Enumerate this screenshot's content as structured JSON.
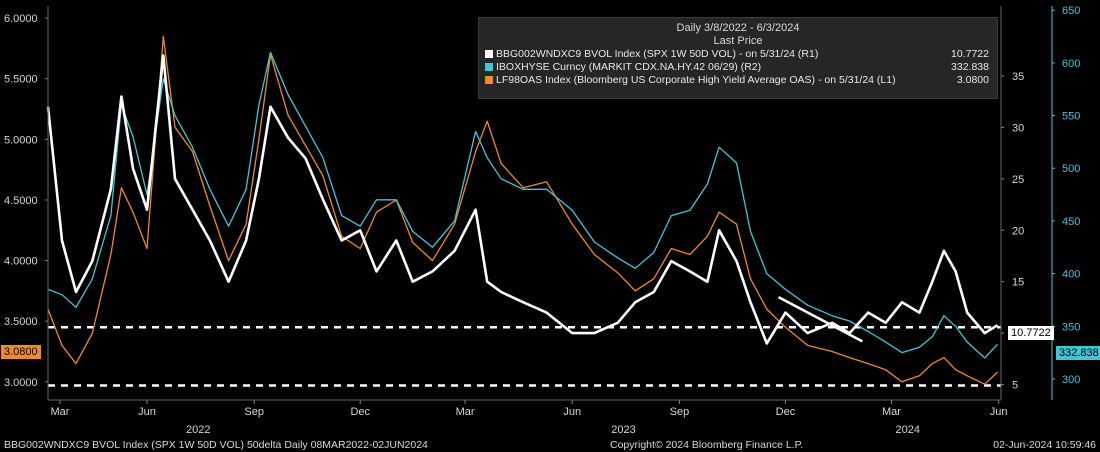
{
  "legend": {
    "range": "Daily 3/8/2022 - 6/3/2024",
    "subtitle": "Last Price",
    "items": [
      {
        "label": "BBG002WNDXC9 BVOL Index (SPX 1W 50D VOL)  - on 5/31/24  (R1)",
        "value": "10.7722",
        "color": "#ffffff"
      },
      {
        "label": "IBOXHYSE Curncy (MARKIT CDX.NA.HY.42 06/29)  (R2)",
        "value": "332.838",
        "color": "#3fc7d8"
      },
      {
        "label": "LF98OAS Index (Bloomberg US Corporate High Yield Average OAS)  - on 5/31/24  (L1)",
        "value": "3.0800",
        "color": "#f08a24"
      }
    ]
  },
  "tags": {
    "left": "3.0800",
    "right1": "10.7722",
    "right2": "332.838"
  },
  "footer": {
    "left": "BBG002WNDXC9 BVOL Index (SPX 1W 50D VOL) 50delta  Daily 08MAR2022-02JUN2024",
    "center": "Copyright© 2024 Bloomberg Finance L.P.",
    "right": "02-Jun-2024 10:59:46"
  },
  "chart_data": {
    "type": "line",
    "x_range": [
      "2022-03-08",
      "2024-06-03"
    ],
    "x_tick_labels": [
      {
        "label": "Mar",
        "date": "2022-03-01"
      },
      {
        "label": "Jun",
        "date": "2022-06-01"
      },
      {
        "label": "Sep",
        "date": "2022-09-01"
      },
      {
        "label": "Dec",
        "date": "2022-12-01"
      },
      {
        "label": "Mar",
        "date": "2023-03-01"
      },
      {
        "label": "Jun",
        "date": "2023-06-01"
      },
      {
        "label": "Sep",
        "date": "2023-09-01"
      },
      {
        "label": "Dec",
        "date": "2023-12-01"
      },
      {
        "label": "Mar",
        "date": "2024-03-01"
      },
      {
        "label": "Jun",
        "date": "2024-06-01"
      }
    ],
    "year_labels": [
      {
        "label": "2022",
        "date": "2022-07-15"
      },
      {
        "label": "2023",
        "date": "2023-07-15"
      },
      {
        "label": "2024",
        "date": "2024-03-15"
      }
    ],
    "axes": {
      "L1": {
        "min": 2.85,
        "max": 6.1,
        "ticks": [
          "3.0000",
          "3.5000",
          "4.0000",
          "4.5000",
          "5.0000",
          "5.5000",
          "6.0000"
        ]
      },
      "R1": {
        "min": 3.5,
        "max": 41.8,
        "ticks": [
          5,
          10,
          15,
          20,
          25,
          30,
          35
        ]
      },
      "R2": {
        "min": 280,
        "max": 654,
        "ticks": [
          300,
          350,
          400,
          450,
          500,
          550,
          600,
          650
        ]
      }
    },
    "series": [
      {
        "name": "BBG002WNDXC9 BVOL Index (SPX 1W 50D VOL)",
        "axis": "R1",
        "color": "#ffffff",
        "points": [
          [
            "2022-03-08",
            32
          ],
          [
            "2022-03-20",
            19
          ],
          [
            "2022-04-01",
            14
          ],
          [
            "2022-04-15",
            17
          ],
          [
            "2022-05-01",
            24
          ],
          [
            "2022-05-10",
            33
          ],
          [
            "2022-05-20",
            26
          ],
          [
            "2022-06-01",
            22
          ],
          [
            "2022-06-15",
            37
          ],
          [
            "2022-06-25",
            25
          ],
          [
            "2022-07-10",
            22
          ],
          [
            "2022-07-25",
            19
          ],
          [
            "2022-08-10",
            15
          ],
          [
            "2022-08-25",
            19
          ],
          [
            "2022-09-05",
            25
          ],
          [
            "2022-09-15",
            32
          ],
          [
            "2022-09-30",
            29
          ],
          [
            "2022-10-15",
            27
          ],
          [
            "2022-10-30",
            23
          ],
          [
            "2022-11-15",
            19
          ],
          [
            "2022-12-01",
            20
          ],
          [
            "2022-12-15",
            16
          ],
          [
            "2023-01-01",
            19
          ],
          [
            "2023-01-15",
            15
          ],
          [
            "2023-02-01",
            16
          ],
          [
            "2023-02-20",
            18
          ],
          [
            "2023-03-10",
            22
          ],
          [
            "2023-03-20",
            15
          ],
          [
            "2023-04-01",
            14
          ],
          [
            "2023-04-20",
            13
          ],
          [
            "2023-05-10",
            12
          ],
          [
            "2023-06-01",
            10
          ],
          [
            "2023-06-20",
            10
          ],
          [
            "2023-07-10",
            11
          ],
          [
            "2023-07-25",
            13
          ],
          [
            "2023-08-10",
            14
          ],
          [
            "2023-08-25",
            17
          ],
          [
            "2023-09-10",
            16
          ],
          [
            "2023-09-25",
            15
          ],
          [
            "2023-10-05",
            20
          ],
          [
            "2023-10-20",
            17
          ],
          [
            "2023-11-01",
            13
          ],
          [
            "2023-11-15",
            9
          ],
          [
            "2023-12-01",
            12
          ],
          [
            "2023-12-20",
            10
          ],
          [
            "2024-01-10",
            11
          ],
          [
            "2024-01-25",
            10
          ],
          [
            "2024-02-10",
            12
          ],
          [
            "2024-02-25",
            11
          ],
          [
            "2024-03-10",
            13
          ],
          [
            "2024-03-25",
            12
          ],
          [
            "2024-04-05",
            15
          ],
          [
            "2024-04-15",
            18
          ],
          [
            "2024-04-25",
            16
          ],
          [
            "2024-05-05",
            12
          ],
          [
            "2024-05-20",
            10
          ],
          [
            "2024-05-31",
            10.7722
          ]
        ]
      },
      {
        "name": "IBOXHYSE Curncy (MARKIT CDX.NA.HY.42 06/29)",
        "axis": "R2",
        "color": "#3fc7d8",
        "points": [
          [
            "2022-03-08",
            385
          ],
          [
            "2022-03-20",
            380
          ],
          [
            "2022-04-01",
            368
          ],
          [
            "2022-04-15",
            395
          ],
          [
            "2022-05-01",
            455
          ],
          [
            "2022-05-10",
            560
          ],
          [
            "2022-05-20",
            530
          ],
          [
            "2022-06-01",
            475
          ],
          [
            "2022-06-15",
            585
          ],
          [
            "2022-06-25",
            550
          ],
          [
            "2022-07-10",
            520
          ],
          [
            "2022-07-25",
            480
          ],
          [
            "2022-08-10",
            445
          ],
          [
            "2022-08-25",
            480
          ],
          [
            "2022-09-05",
            560
          ],
          [
            "2022-09-15",
            610
          ],
          [
            "2022-09-30",
            570
          ],
          [
            "2022-10-15",
            540
          ],
          [
            "2022-10-30",
            510
          ],
          [
            "2022-11-15",
            455
          ],
          [
            "2022-12-01",
            445
          ],
          [
            "2022-12-15",
            470
          ],
          [
            "2023-01-01",
            470
          ],
          [
            "2023-01-15",
            440
          ],
          [
            "2023-02-01",
            425
          ],
          [
            "2023-02-20",
            450
          ],
          [
            "2023-03-10",
            535
          ],
          [
            "2023-03-20",
            510
          ],
          [
            "2023-04-01",
            490
          ],
          [
            "2023-04-20",
            480
          ],
          [
            "2023-05-10",
            480
          ],
          [
            "2023-06-01",
            460
          ],
          [
            "2023-06-20",
            430
          ],
          [
            "2023-07-10",
            415
          ],
          [
            "2023-07-25",
            405
          ],
          [
            "2023-08-10",
            420
          ],
          [
            "2023-08-25",
            455
          ],
          [
            "2023-09-10",
            460
          ],
          [
            "2023-09-25",
            485
          ],
          [
            "2023-10-05",
            520
          ],
          [
            "2023-10-20",
            505
          ],
          [
            "2023-11-01",
            440
          ],
          [
            "2023-11-15",
            400
          ],
          [
            "2023-12-01",
            385
          ],
          [
            "2023-12-20",
            370
          ],
          [
            "2024-01-10",
            360
          ],
          [
            "2024-01-25",
            355
          ],
          [
            "2024-02-10",
            345
          ],
          [
            "2024-02-25",
            335
          ],
          [
            "2024-03-10",
            325
          ],
          [
            "2024-03-25",
            330
          ],
          [
            "2024-04-05",
            340
          ],
          [
            "2024-04-15",
            360
          ],
          [
            "2024-04-25",
            350
          ],
          [
            "2024-05-05",
            335
          ],
          [
            "2024-05-20",
            320
          ],
          [
            "2024-05-31",
            332.838
          ]
        ]
      },
      {
        "name": "LF98OAS Index (Bloomberg US Corporate High Yield Average OAS)",
        "axis": "L1",
        "color": "#f08a24",
        "points": [
          [
            "2022-03-08",
            3.6
          ],
          [
            "2022-03-20",
            3.3
          ],
          [
            "2022-04-01",
            3.15
          ],
          [
            "2022-04-15",
            3.4
          ],
          [
            "2022-05-01",
            4.05
          ],
          [
            "2022-05-10",
            4.6
          ],
          [
            "2022-05-20",
            4.4
          ],
          [
            "2022-06-01",
            4.1
          ],
          [
            "2022-06-15",
            5.85
          ],
          [
            "2022-06-25",
            5.1
          ],
          [
            "2022-07-10",
            4.9
          ],
          [
            "2022-07-25",
            4.45
          ],
          [
            "2022-08-10",
            4.0
          ],
          [
            "2022-08-25",
            4.3
          ],
          [
            "2022-09-05",
            5.0
          ],
          [
            "2022-09-15",
            5.7
          ],
          [
            "2022-09-30",
            5.2
          ],
          [
            "2022-10-15",
            4.95
          ],
          [
            "2022-10-30",
            4.7
          ],
          [
            "2022-11-15",
            4.2
          ],
          [
            "2022-12-01",
            4.1
          ],
          [
            "2022-12-15",
            4.4
          ],
          [
            "2023-01-01",
            4.5
          ],
          [
            "2023-01-15",
            4.15
          ],
          [
            "2023-02-01",
            4.0
          ],
          [
            "2023-02-20",
            4.3
          ],
          [
            "2023-03-10",
            4.9
          ],
          [
            "2023-03-20",
            5.15
          ],
          [
            "2023-04-01",
            4.8
          ],
          [
            "2023-04-20",
            4.6
          ],
          [
            "2023-05-10",
            4.65
          ],
          [
            "2023-06-01",
            4.3
          ],
          [
            "2023-06-20",
            4.05
          ],
          [
            "2023-07-10",
            3.9
          ],
          [
            "2023-07-25",
            3.75
          ],
          [
            "2023-08-10",
            3.85
          ],
          [
            "2023-08-25",
            4.1
          ],
          [
            "2023-09-10",
            4.05
          ],
          [
            "2023-09-25",
            4.2
          ],
          [
            "2023-10-05",
            4.4
          ],
          [
            "2023-10-20",
            4.3
          ],
          [
            "2023-11-01",
            3.85
          ],
          [
            "2023-11-15",
            3.6
          ],
          [
            "2023-12-01",
            3.45
          ],
          [
            "2023-12-20",
            3.3
          ],
          [
            "2024-01-10",
            3.25
          ],
          [
            "2024-01-25",
            3.2
          ],
          [
            "2024-02-10",
            3.15
          ],
          [
            "2024-02-25",
            3.1
          ],
          [
            "2024-03-10",
            3.0
          ],
          [
            "2024-03-25",
            3.05
          ],
          [
            "2024-04-05",
            3.15
          ],
          [
            "2024-04-15",
            3.2
          ],
          [
            "2024-04-25",
            3.1
          ],
          [
            "2024-05-05",
            3.05
          ],
          [
            "2024-05-20",
            2.98
          ],
          [
            "2024-05-31",
            3.08
          ]
        ]
      }
    ],
    "reference_lines": [
      {
        "axis": "L1",
        "value": 3.45,
        "style": "dashed",
        "color": "#ffffff"
      },
      {
        "axis": "L1",
        "value": 2.97,
        "style": "dashed",
        "color": "#ffffff"
      }
    ],
    "trend_line": {
      "axis": "R1",
      "color": "#ffffff",
      "from": [
        "2023-11-25",
        13.5
      ],
      "to": [
        "2024-02-05",
        9.2
      ]
    },
    "grid": false,
    "legend_position": "top-right"
  }
}
